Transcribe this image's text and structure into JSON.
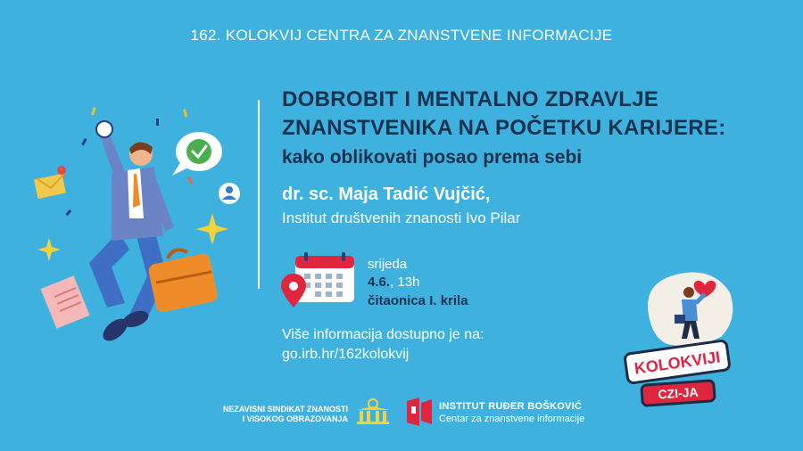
{
  "header": {
    "title": "162. KOLOKVIJ CENTRA ZA ZNANSTVENE INFORMACIJE"
  },
  "talk": {
    "title_line1": "DOBROBIT I MENTALNO ZDRAVLJE",
    "title_line2": "ZNANSTVENIKA NA POČETKU KARIJERE:",
    "subtitle": "kako oblikovati posao prema sebi"
  },
  "speaker": {
    "name": "dr. sc. Maja Tadić Vujčić,",
    "institution": "Institut društvenih znanosti Ivo Pilar"
  },
  "event": {
    "day": "srijeda",
    "date": "4.6.",
    "time": ", 13h",
    "location": "čitaonica I. krila"
  },
  "info": {
    "text": "Više informacija dostupno je na:",
    "link": "go.irb.hr/162kolokvij"
  },
  "badge": {
    "line1": "KOLOKVIJI",
    "line2": "CZI-JA"
  },
  "footer": {
    "union_line1": "NEZAVISNI SINDIKAT ZNANOSTI",
    "union_line2": "I VISOKOG OBRAZOVANJA",
    "irb_name": "INSTITUT RUĐER BOŠKOVIĆ",
    "irb_dept": "Centar za znanstvene informacije"
  },
  "colors": {
    "background": "#3eb1de",
    "title": "#17324f",
    "accent_red": "#e0253f"
  }
}
